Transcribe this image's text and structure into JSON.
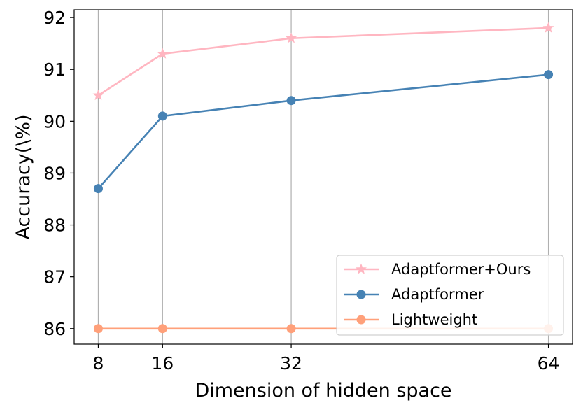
{
  "chart_data": {
    "type": "line",
    "xlabel": "Dimension of hidden space",
    "ylabel": "Accuracy(\\%)",
    "x": [
      8,
      16,
      32,
      64
    ],
    "x_tick_labels": [
      "8",
      "16",
      "32",
      "64"
    ],
    "xlim": [
      5,
      67
    ],
    "ylim": [
      85.7,
      92.15
    ],
    "y_ticks": [
      86,
      87,
      88,
      89,
      90,
      91,
      92
    ],
    "y_tick_labels": [
      "86",
      "87",
      "88",
      "89",
      "90",
      "91",
      "92"
    ],
    "grid": "vertical",
    "legend_position": "lower-right",
    "series": [
      {
        "name": "Adaptformer+Ours",
        "values": [
          90.5,
          91.3,
          91.6,
          91.8
        ],
        "color": "#ffb6c1",
        "marker": "star"
      },
      {
        "name": "Adaptformer",
        "values": [
          88.7,
          90.1,
          90.4,
          90.9
        ],
        "color": "#4682b4",
        "marker": "circle"
      },
      {
        "name": "Lightweight",
        "values": [
          86.0,
          86.0,
          86.0,
          86.0
        ],
        "color": "#ffa07a",
        "marker": "circle"
      }
    ]
  }
}
